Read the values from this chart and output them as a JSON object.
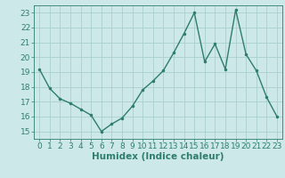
{
  "x": [
    0,
    1,
    2,
    3,
    4,
    5,
    6,
    7,
    8,
    9,
    10,
    11,
    12,
    13,
    14,
    15,
    16,
    17,
    18,
    19,
    20,
    21,
    22,
    23
  ],
  "y": [
    19.2,
    17.9,
    17.2,
    16.9,
    16.5,
    16.1,
    15.0,
    15.5,
    15.9,
    16.7,
    17.8,
    18.4,
    19.1,
    20.3,
    21.6,
    23.0,
    19.7,
    20.9,
    19.2,
    23.2,
    20.2,
    19.1,
    17.3,
    16.0
  ],
  "line_color": "#2e7d6e",
  "marker": ".",
  "marker_size": 3,
  "background_color": "#cce8e8",
  "grid_color": "#aacfcf",
  "xlabel": "Humidex (Indice chaleur)",
  "xlabel_fontsize": 7.5,
  "tick_fontsize": 6.5,
  "ylim": [
    14.5,
    23.5
  ],
  "xlim": [
    -0.5,
    23.5
  ],
  "yticks": [
    15,
    16,
    17,
    18,
    19,
    20,
    21,
    22,
    23
  ],
  "xticks": [
    0,
    1,
    2,
    3,
    4,
    5,
    6,
    7,
    8,
    9,
    10,
    11,
    12,
    13,
    14,
    15,
    16,
    17,
    18,
    19,
    20,
    21,
    22,
    23
  ],
  "line_width": 1.0
}
